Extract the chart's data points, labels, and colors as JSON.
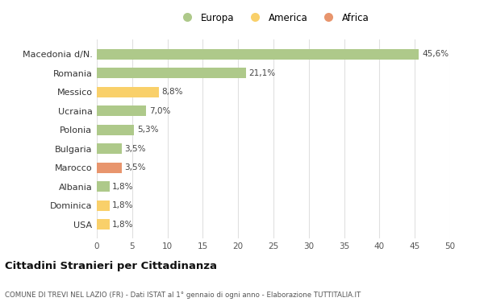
{
  "categories": [
    "Macedonia d/N.",
    "Romania",
    "Messico",
    "Ucraina",
    "Polonia",
    "Bulgaria",
    "Marocco",
    "Albania",
    "Dominica",
    "USA"
  ],
  "values": [
    45.6,
    21.1,
    8.8,
    7.0,
    5.3,
    3.5,
    3.5,
    1.8,
    1.8,
    1.8
  ],
  "labels": [
    "45,6%",
    "21,1%",
    "8,8%",
    "7,0%",
    "5,3%",
    "3,5%",
    "3,5%",
    "1,8%",
    "1,8%",
    "1,8%"
  ],
  "colors": [
    "#aec98a",
    "#aec98a",
    "#f9d06a",
    "#aec98a",
    "#aec98a",
    "#aec98a",
    "#e8956d",
    "#aec98a",
    "#f9d06a",
    "#f9d06a"
  ],
  "legend_labels": [
    "Europa",
    "America",
    "Africa"
  ],
  "legend_colors": [
    "#aec98a",
    "#f9d06a",
    "#e8956d"
  ],
  "xlim": [
    0,
    50
  ],
  "xticks": [
    0,
    5,
    10,
    15,
    20,
    25,
    30,
    35,
    40,
    45,
    50
  ],
  "title": "Cittadini Stranieri per Cittadinanza",
  "subtitle": "COMUNE DI TREVI NEL LAZIO (FR) - Dati ISTAT al 1° gennaio di ogni anno - Elaborazione TUTTITALIA.IT",
  "background_color": "#ffffff",
  "grid_color": "#e0e0e0",
  "bar_height": 0.55
}
